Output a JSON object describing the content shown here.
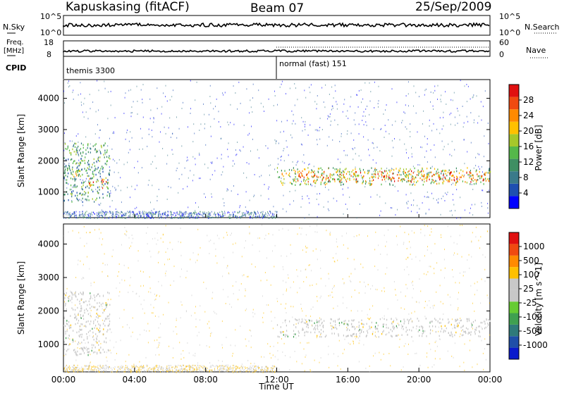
{
  "header": {
    "station": "Kapuskasing (fitACF)",
    "beam": "Beam 07",
    "date": "25/Sep/2009"
  },
  "strip_labels": {
    "nsky": "N.Sky",
    "freq_line1": "Freq.",
    "freq_line2": "[MHz]",
    "cpid": "CPID",
    "nsearch": "N.Search",
    "nave": "Nave",
    "nsky_ticks": [
      "10^5",
      "10^0"
    ],
    "nsearch_ticks": [
      "10^5",
      "10^0"
    ],
    "freq_ticks": [
      "18",
      "8"
    ],
    "nave_ticks": [
      "60",
      "0"
    ]
  },
  "cpid_segments": [
    {
      "label": "themis 3300",
      "start_hour": 0
    },
    {
      "label": "normal (fast) 151",
      "start_hour": 12
    }
  ],
  "colors": {
    "power": [
      "#0000ff",
      "#1e4fb0",
      "#3a7a8a",
      "#3f8f63",
      "#55b84a",
      "#a6c82a",
      "#ffc000",
      "#ff8a00",
      "#f04a10",
      "#e01010"
    ],
    "velocity": [
      "#0a1acc",
      "#1f4fa8",
      "#2f7a7a",
      "#3fa050",
      "#66cc33",
      "#c8c8c8",
      "#c8c8c8",
      "#ffc000",
      "#ff8a00",
      "#f04a10",
      "#e01010"
    ]
  },
  "chart_data": [
    {
      "type": "heatmap",
      "title": "Power",
      "ylabel": "Slant Range [km]",
      "xlabel": "",
      "ylim": [
        180,
        4600
      ],
      "xlim": [
        0,
        24
      ],
      "x_ticks": [
        "00:00",
        "04:00",
        "08:00",
        "12:00",
        "16:00",
        "20:00",
        "00:00"
      ],
      "y_ticks": [
        1000,
        2000,
        3000,
        4000
      ],
      "colorbar": {
        "label": "Power [dB]",
        "ticks": [
          4,
          8,
          12,
          16,
          20,
          24,
          28
        ]
      },
      "regions": [
        {
          "x0": 0.0,
          "x1": 2.6,
          "y0": 700,
          "y1": 2600,
          "level": 0.35
        },
        {
          "x0": 0.0,
          "x1": 1.0,
          "y0": 1500,
          "y1": 1800,
          "level": 0.55
        },
        {
          "x0": 1.3,
          "x1": 2.5,
          "y0": 1150,
          "y1": 1450,
          "level": 0.75
        },
        {
          "x0": 12.0,
          "x1": 24.0,
          "y0": 1250,
          "y1": 1800,
          "level": 0.5
        },
        {
          "x0": 13.0,
          "x1": 24.0,
          "y0": 1350,
          "y1": 1700,
          "level": 0.8
        }
      ]
    },
    {
      "type": "heatmap",
      "title": "Velocity",
      "ylabel": "Slant Range [km]",
      "xlabel": "Time UT",
      "ylim": [
        180,
        4600
      ],
      "xlim": [
        0,
        24
      ],
      "x_ticks": [
        "00:00",
        "04:00",
        "08:00",
        "12:00",
        "16:00",
        "20:00",
        "00:00"
      ],
      "y_ticks": [
        1000,
        2000,
        3000,
        4000
      ],
      "colorbar": {
        "label": "Velocity [m s^-1]",
        "ticks": [
          "1000",
          "500",
          "100",
          "25",
          "-25",
          "-100",
          "-500",
          "-1000"
        ]
      },
      "regions": [
        {
          "x0": 0.0,
          "x1": 2.6,
          "y0": 700,
          "y1": 2600,
          "level": 0.5
        },
        {
          "x0": 12.0,
          "x1": 24.0,
          "y0": 1250,
          "y1": 1800,
          "level": 0.5
        }
      ]
    }
  ]
}
